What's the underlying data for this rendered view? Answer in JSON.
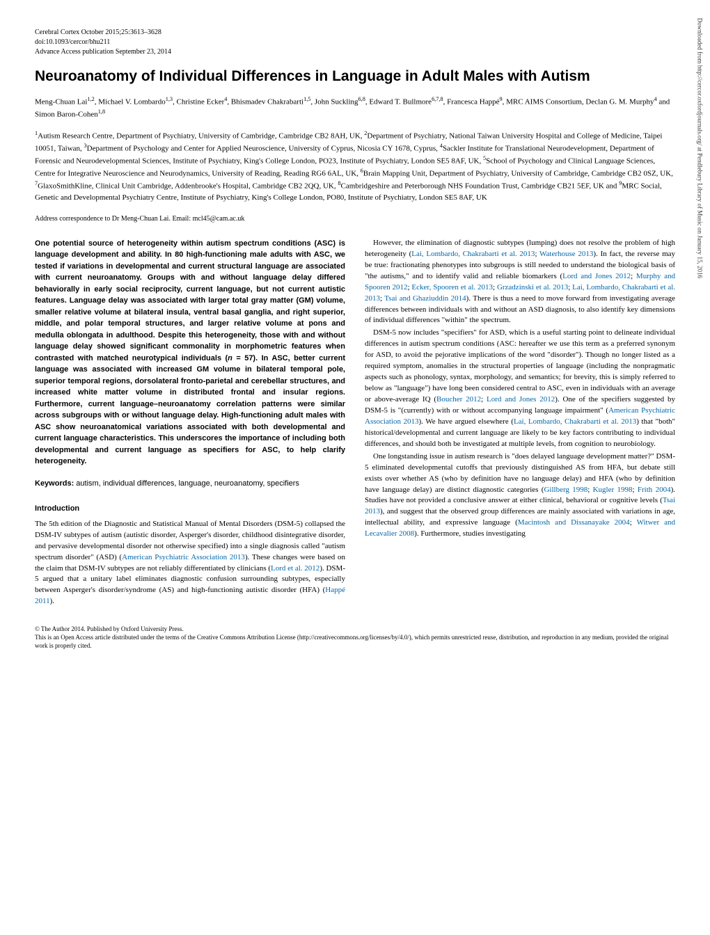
{
  "meta": {
    "journal_line": "Cerebral Cortex October 2015;25:3613–3628",
    "doi_line": "doi:10.1093/cercor/bhu211",
    "pub_line": "Advance Access publication September 23, 2014"
  },
  "title": "Neuroanatomy of Individual Differences in Language in Adult Males with Autism",
  "authors_html": "Meng-Chuan Lai<sup>1,2</sup>, Michael V. Lombardo<sup>1,3</sup>, Christine Ecker<sup>4</sup>, Bhismadev Chakrabarti<sup>1,5</sup>, John Suckling<sup>6,8</sup>, Edward T. Bullmore<sup>6,7,8</sup>, Francesca Happé<sup>9</sup>, MRC AIMS Consortium, Declan G. M. Murphy<sup>4</sup> and Simon Baron-Cohen<sup>1,8</sup>",
  "affiliations_html": "<sup>1</sup>Autism Research Centre, Department of Psychiatry, University of Cambridge, Cambridge CB2 8AH, UK, <sup>2</sup>Department of Psychiatry, National Taiwan University Hospital and College of Medicine, Taipei 10051, Taiwan, <sup>3</sup>Department of Psychology and Center for Applied Neuroscience, University of Cyprus, Nicosia CY 1678, Cyprus, <sup>4</sup>Sackler Institute for Translational Neurodevelopment, Department of Forensic and Neurodevelopmental Sciences, Institute of Psychiatry, King's College London, PO23, Institute of Psychiatry, London SE5 8AF, UK, <sup>5</sup>School of Psychology and Clinical Language Sciences, Centre for Integrative Neuroscience and Neurodynamics, University of Reading, Reading RG6 6AL, UK, <sup>6</sup>Brain Mapping Unit, Department of Psychiatry, University of Cambridge, Cambridge CB2 0SZ, UK, <sup>7</sup>GlaxoSmithKline, Clinical Unit Cambridge, Addenbrooke's Hospital, Cambridge CB2 2QQ, UK, <sup>8</sup>Cambridgeshire and Peterborough NHS Foundation Trust, Cambridge CB21 5EF, UK and <sup>9</sup>MRC Social, Genetic and Developmental Psychiatry Centre, Institute of Psychiatry, King's College London, PO80, Institute of Psychiatry, London SE5 8AF, UK",
  "correspondence": "Address correspondence to Dr Meng-Chuan Lai. Email: mcl45@cam.ac.uk",
  "abstract_html": "One potential source of heterogeneity within autism spectrum conditions (ASC) is language development and ability. In 80 high-functioning male adults with ASC, we tested if variations in developmental and current structural language are associated with current neuroanatomy. Groups with and without language delay differed behaviorally in early social reciprocity, current language, but not current autistic features. Language delay was associated with larger total gray matter (GM) volume, smaller relative volume at bilateral insula, ventral basal ganglia, and right superior, middle, and polar temporal structures, and larger relative volume at pons and medulla oblongata in adulthood. Despite this heterogeneity, those with and without language delay showed significant commonality in morphometric features when contrasted with matched neurotypical individuals (<span class=\"ital-n\">n</span> = 57). In ASC, better current language was associated with increased GM volume in bilateral temporal pole, superior temporal regions, dorsolateral fronto-parietal and cerebellar structures, and increased white matter volume in distributed frontal and insular regions. Furthermore, current language–neuroanatomy correlation patterns were similar across subgroups with or without language delay. High-functioning adult males with ASC show neuroanatomical variations associated with both developmental and current language characteristics. This underscores the importance of including both developmental and current language as specifiers for ASC, to help clarify heterogeneity.",
  "keywords_label": "Keywords:",
  "keywords_text": " autism, individual differences, language, neuroanatomy, specifiers",
  "intro_heading": "Introduction",
  "intro_p1_html": "The 5th edition of the Diagnostic and Statistical Manual of Mental Disorders (DSM-5) collapsed the DSM-IV subtypes of autism (autistic disorder, Asperger's disorder, childhood disintegrative disorder, and pervasive developmental disorder not otherwise specified) into a single diagnosis called \"autism spectrum disorder\" (ASD) (<span class=\"cite\">American Psychiatric Association 2013</span>). These changes were based on the claim that DSM-IV subtypes are not reliably differentiated by clinicians (<span class=\"cite\">Lord et al. 2012</span>). DSM-5 argued that a unitary label eliminates diagnostic confusion surrounding subtypes, especially between Asperger's disorder/syndrome (AS) and high-functioning autistic disorder (HFA) (<span class=\"cite\">Happé 2011</span>).",
  "col2_p1_html": "However, the elimination of diagnostic subtypes (lumping) does not resolve the problem of high heterogeneity (<span class=\"cite\">Lai, Lombardo, Chakrabarti et al. 2013</span>; <span class=\"cite\">Waterhouse 2013</span>). In fact, the reverse may be true: fractionating phenotypes into subgroups is still needed to understand the biological basis of \"the autisms,\" and to identify valid and reliable biomarkers (<span class=\"cite\">Lord and Jones 2012</span>; <span class=\"cite\">Murphy and Spooren 2012</span>; <span class=\"cite\">Ecker, Spooren et al. 2013</span>; <span class=\"cite\">Grzadzinski et al. 2013</span>; <span class=\"cite\">Lai, Lombardo, Chakrabarti et al. 2013</span>; <span class=\"cite\">Tsai and Ghaziuddin 2014</span>). There is thus a need to move forward from investigating average differences between individuals with and without an ASD diagnosis, to also identify key dimensions of individual differences \"within\" the spectrum.",
  "col2_p2_html": "DSM-5 now includes \"specifiers\" for ASD, which is a useful starting point to delineate individual differences in autism spectrum conditions (ASC: hereafter we use this term as a preferred synonym for ASD, to avoid the pejorative implications of the word \"disorder\"). Though no longer listed as a required symptom, anomalies in the structural properties of language (including the nonpragmatic aspects such as phonology, syntax, morphology, and semantics; for brevity, this is simply referred to below as \"language\") have long been considered central to ASC, even in individuals with an average or above-average IQ (<span class=\"cite\">Boucher 2012</span>; <span class=\"cite\">Lord and Jones 2012</span>). One of the specifiers suggested by DSM-5 is \"(currently) with or without accompanying language impairment\" (<span class=\"cite\">American Psychiatric Association 2013</span>). We have argued elsewhere (<span class=\"cite\">Lai, Lombardo, Chakrabarti et al. 2013</span>) that \"both\" historical/developmental and current language are likely to be key factors contributing to individual differences, and should both be investigated at multiple levels, from cognition to neurobiology.",
  "col2_p3_html": "One longstanding issue in autism research is \"does delayed language development matter?\" DSM-5 eliminated developmental cutoffs that previously distinguished AS from HFA, but debate still exists over whether AS (who by definition have no language delay) and HFA (who by definition have language delay) are distinct diagnostic categories (<span class=\"cite\">Gillberg 1998</span>; <span class=\"cite\">Kugler 1998</span>; <span class=\"cite\">Frith 2004</span>). Studies have not provided a conclusive answer at either clinical, behavioral or cognitive levels (<span class=\"cite\">Tsai 2013</span>), and suggest that the observed group differences are mainly associated with variations in age, intellectual ability, and expressive language (<span class=\"cite\">Macintosh and Dissanayake 2004</span>; <span class=\"cite\">Witwer and Lecavalier 2008</span>). Furthermore, studies investigating",
  "footer": {
    "copyright": "© The Author 2014. Published by Oxford University Press.",
    "license": "This is an Open Access article distributed under the terms of the Creative Commons Attribution License (http://creativecommons.org/licenses/by/4.0/), which permits unrestricted reuse, distribution, and reproduction in any medium, provided the original work is properly cited."
  },
  "side_text": "Downloaded from http://cercor.oxfordjournals.org/ at Pendlebury Library of Music on January 15, 2016"
}
